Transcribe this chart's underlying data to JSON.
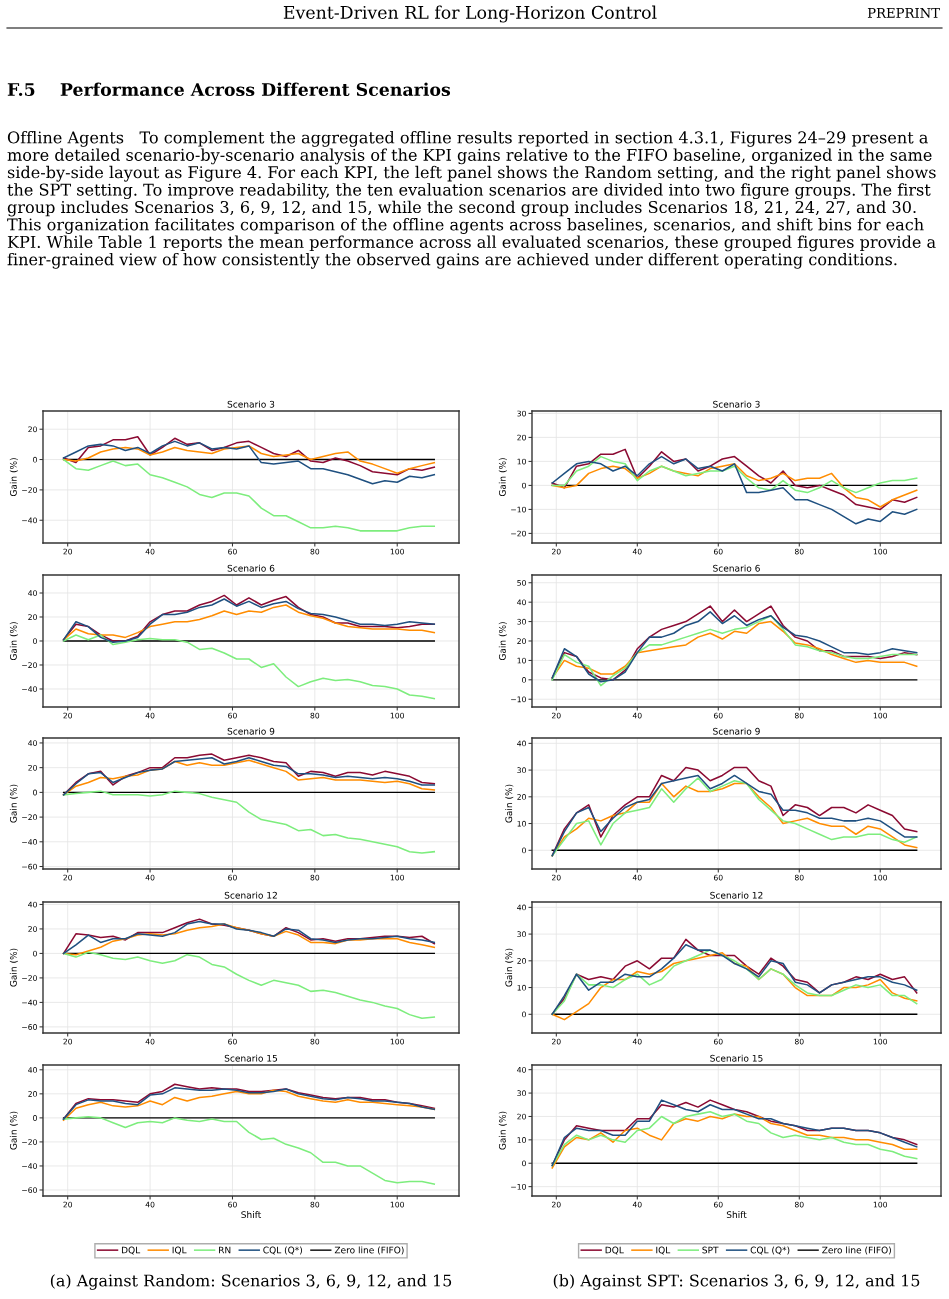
{
  "chart_data": [
    {
      "type": "other",
      "title": "F.5    Performance Across Different Scenarios",
      "annotations": [
        "Event-Driven RL for Long-Horizon Control",
        "PREPRINT",
        "Offline Agents   To complement the aggregated offline results reported in section 4.3.1, Figures 24–29 present a more detailed scenario-by-scenario analysis of the KPI gains relative to the FIFO baseline, organized in the same side-by-side layout as Figure 4. For each KPI, the left panel shows the Random setting, and the right panel shows the SPT setting. To improve readability, the ten evaluation scenarios are divided into two figure groups. The first group includes Scenarios 3, 6, 9, 12, and 15, while the second group includes Scenarios 18, 21, 24, 27, and 30. This organization facilitates comparison of the offline agents across baselines, scenarios, and shift bins for each KPI. While Table 1 reports the mean performance across all evaluated scenarios, these grouped figures provide a finer-grained view of how consistently the observed gains are achieved under different operating conditions."
      ]
    },
    {
      "type": "line",
      "title": "Scenario 3",
      "ylabel": "Gain (%)",
      "grid": true,
      "legend": false,
      "xlim": [
        14,
        115
      ],
      "xticks": [
        20,
        40,
        60,
        80,
        100
      ],
      "ylim": [
        -55,
        32
      ],
      "yticks": [
        -40,
        -20,
        0,
        20
      ],
      "x": [
        19,
        22,
        25,
        28,
        31,
        34,
        37,
        40,
        43,
        46,
        49,
        52,
        55,
        58,
        61,
        64,
        67,
        70,
        73,
        76,
        79,
        82,
        85,
        88,
        91,
        94,
        97,
        100,
        103,
        106,
        109
      ],
      "ref_lines": [
        {
          "axis": "y",
          "value": 0,
          "color": "#000000"
        }
      ],
      "series": [
        {
          "color": "#8b0a32",
          "values": [
            1,
            -2,
            8,
            9,
            13,
            13,
            15,
            3,
            8,
            14,
            10,
            11,
            6,
            8,
            11,
            12,
            8,
            4,
            2,
            6,
            -1,
            -2,
            1,
            -1,
            -4,
            -8,
            -9,
            -10,
            -6,
            -7,
            -5
          ]
        },
        {
          "color": "#ff8c00",
          "values": [
            0,
            -1,
            1,
            5,
            7,
            8,
            7,
            3,
            5,
            8,
            6,
            5,
            4,
            7,
            8,
            9,
            4,
            2,
            3,
            4,
            0,
            2,
            4,
            5,
            -1,
            -3,
            -6,
            -9,
            -6,
            -4,
            -2
          ]
        },
        {
          "color": "#7ded7d",
          "values": [
            0,
            -6,
            -7,
            -4,
            -1,
            -4,
            -3,
            -10,
            -12,
            -15,
            -18,
            -23,
            -25,
            -22,
            -22,
            -24,
            -32,
            -37,
            -37,
            -41,
            -45,
            -45,
            -44,
            -45,
            -47,
            -47,
            -47,
            -47,
            -45,
            -44,
            -44
          ]
        },
        {
          "color": "#1f5080",
          "values": [
            1,
            5,
            9,
            10,
            9,
            6,
            8,
            4,
            9,
            12,
            9,
            11,
            7,
            8,
            7,
            9,
            -2,
            -3,
            -2,
            -1,
            -6,
            -6,
            -8,
            -10,
            -13,
            -16,
            -14,
            -15,
            -11,
            -12,
            -10
          ]
        }
      ]
    },
    {
      "type": "line",
      "title": "Scenario 3",
      "ylabel": "Gain (%)",
      "grid": true,
      "legend": false,
      "xlim": [
        14,
        115
      ],
      "xticks": [
        20,
        40,
        60,
        80,
        100
      ],
      "ylim": [
        -24,
        31
      ],
      "yticks": [
        -20,
        -10,
        0,
        10,
        20,
        30
      ],
      "x": [
        19,
        22,
        25,
        28,
        31,
        34,
        37,
        40,
        43,
        46,
        49,
        52,
        55,
        58,
        61,
        64,
        67,
        70,
        73,
        76,
        79,
        82,
        85,
        88,
        91,
        94,
        97,
        100,
        103,
        106,
        109
      ],
      "ref_lines": [
        {
          "axis": "y",
          "value": 0,
          "color": "#000000"
        }
      ],
      "series": [
        {
          "color": "#8b0a32",
          "values": [
            1,
            -1,
            8,
            9,
            13,
            13,
            15,
            3,
            8,
            14,
            10,
            11,
            6,
            8,
            11,
            12,
            8,
            4,
            1,
            6,
            0,
            -1,
            0,
            -2,
            -4,
            -8,
            -9,
            -10,
            -6,
            -7,
            -5
          ]
        },
        {
          "color": "#ff8c00",
          "values": [
            0,
            -1,
            0,
            5,
            7,
            8,
            7,
            3,
            5,
            8,
            6,
            5,
            4,
            7,
            8,
            9,
            4,
            2,
            3,
            5,
            2,
            3,
            3,
            5,
            -1,
            -5,
            -6,
            -9,
            -6,
            -4,
            -2
          ]
        },
        {
          "color": "#7ded7d",
          "values": [
            0,
            0,
            6,
            8,
            12,
            10,
            9,
            2,
            6,
            8,
            6,
            4,
            5,
            6,
            6,
            8,
            3,
            -1,
            -2,
            2,
            -2,
            -3,
            -1,
            2,
            -1,
            -3,
            -1,
            1,
            2,
            2,
            3
          ]
        },
        {
          "color": "#1f5080",
          "values": [
            1,
            5,
            9,
            10,
            9,
            6,
            8,
            4,
            9,
            12,
            9,
            11,
            7,
            8,
            6,
            9,
            -3,
            -3,
            -2,
            -1,
            -6,
            -6,
            -8,
            -10,
            -13,
            -16,
            -14,
            -15,
            -11,
            -12,
            -10
          ]
        }
      ]
    },
    {
      "type": "line",
      "title": "Scenario 6",
      "ylabel": "Gain (%)",
      "grid": true,
      "legend": false,
      "xlim": [
        14,
        115
      ],
      "xticks": [
        20,
        40,
        60,
        80,
        100
      ],
      "ylim": [
        -55,
        55
      ],
      "yticks": [
        -40,
        -20,
        0,
        20,
        40
      ],
      "x": [
        19,
        22,
        25,
        28,
        31,
        34,
        37,
        40,
        43,
        46,
        49,
        52,
        55,
        58,
        61,
        64,
        67,
        70,
        73,
        76,
        79,
        82,
        85,
        88,
        91,
        94,
        97,
        100,
        103,
        106,
        109
      ],
      "ref_lines": [
        {
          "axis": "y",
          "value": 0,
          "color": "#000000"
        }
      ],
      "series": [
        {
          "color": "#8b0a32",
          "values": [
            1,
            14,
            12,
            5,
            0,
            0,
            4,
            16,
            22,
            25,
            25,
            30,
            33,
            38,
            30,
            36,
            30,
            34,
            37,
            28,
            22,
            20,
            15,
            15,
            12,
            12,
            12,
            11,
            12,
            14,
            14
          ]
        },
        {
          "color": "#ff8c00",
          "values": [
            1,
            10,
            6,
            5,
            5,
            3,
            7,
            12,
            14,
            16,
            16,
            18,
            21,
            25,
            22,
            25,
            24,
            28,
            30,
            24,
            21,
            19,
            15,
            12,
            11,
            10,
            10,
            10,
            9,
            9,
            7
          ]
        },
        {
          "color": "#7ded7d",
          "values": [
            0,
            5,
            1,
            5,
            -3,
            -1,
            1,
            2,
            1,
            1,
            -1,
            -7,
            -6,
            -10,
            -15,
            -15,
            -22,
            -19,
            -30,
            -38,
            -34,
            -31,
            -33,
            -32,
            -34,
            -37,
            -38,
            -40,
            -45,
            -46,
            -48
          ]
        },
        {
          "color": "#1f5080",
          "values": [
            1,
            16,
            12,
            3,
            -1,
            0,
            3,
            14,
            22,
            22,
            24,
            28,
            30,
            35,
            29,
            33,
            28,
            31,
            33,
            27,
            23,
            22,
            20,
            17,
            14,
            14,
            13,
            14,
            16,
            15,
            14
          ]
        }
      ]
    },
    {
      "type": "line",
      "title": "Scenario 6",
      "ylabel": "Gain (%)",
      "grid": true,
      "legend": false,
      "xlim": [
        14,
        115
      ],
      "xticks": [
        20,
        40,
        60,
        80,
        100
      ],
      "ylim": [
        -14,
        54
      ],
      "yticks": [
        -10,
        0,
        10,
        20,
        30,
        40,
        50
      ],
      "x": [
        19,
        22,
        25,
        28,
        31,
        34,
        37,
        40,
        43,
        46,
        49,
        52,
        55,
        58,
        61,
        64,
        67,
        70,
        73,
        76,
        79,
        82,
        85,
        88,
        91,
        94,
        97,
        100,
        103,
        106,
        109
      ],
      "ref_lines": [
        {
          "axis": "y",
          "value": 0,
          "color": "#000000"
        }
      ],
      "series": [
        {
          "color": "#8b0a32",
          "values": [
            1,
            14,
            12,
            4,
            1,
            0,
            5,
            16,
            22,
            26,
            28,
            30,
            34,
            38,
            30,
            36,
            30,
            34,
            38,
            28,
            22,
            20,
            15,
            15,
            12,
            12,
            12,
            11,
            12,
            14,
            13
          ]
        },
        {
          "color": "#ff8c00",
          "values": [
            1,
            10,
            7,
            6,
            3,
            3,
            7,
            14,
            15,
            16,
            17,
            18,
            22,
            24,
            21,
            25,
            24,
            29,
            30,
            25,
            19,
            18,
            16,
            13,
            11,
            9,
            10,
            9,
            9,
            9,
            7
          ]
        },
        {
          "color": "#7ded7d",
          "values": [
            0,
            13,
            9,
            7,
            -3,
            2,
            6,
            14,
            18,
            18,
            20,
            22,
            24,
            26,
            24,
            26,
            27,
            30,
            33,
            26,
            18,
            17,
            15,
            14,
            12,
            11,
            11,
            12,
            13,
            13,
            13
          ]
        },
        {
          "color": "#1f5080",
          "values": [
            1,
            16,
            12,
            3,
            -1,
            0,
            4,
            14,
            22,
            22,
            24,
            28,
            30,
            35,
            29,
            33,
            28,
            31,
            33,
            27,
            23,
            22,
            20,
            17,
            14,
            14,
            13,
            14,
            16,
            15,
            14
          ]
        }
      ]
    },
    {
      "type": "line",
      "title": "Scenario 9",
      "ylabel": "Gain (%)",
      "grid": true,
      "legend": false,
      "xlim": [
        14,
        115
      ],
      "xticks": [
        20,
        40,
        60,
        80,
        100
      ],
      "ylim": [
        -62,
        44
      ],
      "yticks": [
        -60,
        -40,
        -20,
        0,
        20,
        40
      ],
      "x": [
        19,
        22,
        25,
        28,
        31,
        34,
        37,
        40,
        43,
        46,
        49,
        52,
        55,
        58,
        61,
        64,
        67,
        70,
        73,
        76,
        79,
        82,
        85,
        88,
        91,
        94,
        97,
        100,
        103,
        106,
        109
      ],
      "ref_lines": [
        {
          "axis": "y",
          "value": 0,
          "color": "#000000"
        }
      ],
      "series": [
        {
          "color": "#8b0a32",
          "values": [
            -2,
            8,
            15,
            17,
            6,
            13,
            16,
            20,
            20,
            28,
            28,
            30,
            31,
            26,
            28,
            30,
            28,
            25,
            24,
            13,
            17,
            16,
            13,
            16,
            16,
            14,
            17,
            15,
            13,
            8,
            7
          ]
        },
        {
          "color": "#ff8c00",
          "values": [
            -2,
            5,
            8,
            12,
            11,
            13,
            14,
            18,
            19,
            25,
            22,
            24,
            22,
            22,
            24,
            26,
            23,
            20,
            17,
            10,
            11,
            12,
            10,
            10,
            10,
            9,
            8,
            9,
            7,
            3,
            2
          ]
        },
        {
          "color": "#7ded7d",
          "values": [
            -2,
            -1,
            0,
            1,
            -2,
            -2,
            -2,
            -3,
            -2,
            1,
            0,
            -1,
            -4,
            -6,
            -8,
            -16,
            -22,
            -24,
            -26,
            -31,
            -30,
            -35,
            -34,
            -37,
            -38,
            -40,
            -42,
            -44,
            -48,
            -49,
            -48
          ]
        },
        {
          "color": "#1f5080",
          "values": [
            -2,
            7,
            15,
            16,
            8,
            12,
            16,
            18,
            19,
            25,
            26,
            27,
            28,
            23,
            25,
            28,
            25,
            22,
            21,
            15,
            15,
            14,
            12,
            13,
            12,
            11,
            12,
            11,
            9,
            6,
            6
          ]
        }
      ]
    },
    {
      "type": "line",
      "title": "Scenario 9",
      "ylabel": "Gain (%)",
      "grid": true,
      "legend": false,
      "xlim": [
        14,
        115
      ],
      "xticks": [
        20,
        40,
        60,
        80,
        100
      ],
      "ylim": [
        -7,
        42
      ],
      "yticks": [
        0,
        10,
        20,
        30,
        40
      ],
      "x": [
        19,
        22,
        25,
        28,
        31,
        34,
        37,
        40,
        43,
        46,
        49,
        52,
        55,
        58,
        61,
        64,
        67,
        70,
        73,
        76,
        79,
        82,
        85,
        88,
        91,
        94,
        97,
        100,
        103,
        106,
        109
      ],
      "ref_lines": [
        {
          "axis": "y",
          "value": 0,
          "color": "#000000"
        }
      ],
      "series": [
        {
          "color": "#8b0a32",
          "values": [
            -2,
            8,
            14,
            17,
            5,
            13,
            17,
            20,
            20,
            28,
            26,
            31,
            30,
            26,
            28,
            31,
            31,
            26,
            24,
            13,
            17,
            16,
            13,
            16,
            16,
            14,
            17,
            15,
            13,
            8,
            7
          ]
        },
        {
          "color": "#ff8c00",
          "values": [
            -2,
            5,
            8,
            12,
            11,
            13,
            14,
            18,
            18,
            25,
            20,
            24,
            22,
            22,
            23,
            25,
            25,
            20,
            16,
            10,
            11,
            12,
            10,
            9,
            9,
            6,
            9,
            8,
            5,
            2,
            1
          ]
        },
        {
          "color": "#7ded7d",
          "values": [
            -2,
            4,
            10,
            11,
            2,
            10,
            14,
            15,
            16,
            23,
            18,
            23,
            27,
            22,
            24,
            26,
            25,
            19,
            15,
            11,
            10,
            8,
            6,
            4,
            5,
            5,
            6,
            6,
            4,
            3,
            5
          ]
        },
        {
          "color": "#1f5080",
          "values": [
            -2,
            7,
            14,
            16,
            7,
            12,
            16,
            18,
            19,
            25,
            26,
            27,
            28,
            23,
            25,
            28,
            25,
            22,
            21,
            15,
            15,
            14,
            12,
            12,
            11,
            11,
            12,
            11,
            8,
            5,
            5
          ]
        }
      ]
    },
    {
      "type": "line",
      "title": "Scenario 12",
      "ylabel": "Gain (%)",
      "grid": true,
      "legend": false,
      "xlim": [
        14,
        115
      ],
      "xticks": [
        20,
        40,
        60,
        80,
        100
      ],
      "ylim": [
        -65,
        42
      ],
      "yticks": [
        -60,
        -40,
        -20,
        0,
        20,
        40
      ],
      "x": [
        19,
        22,
        25,
        28,
        31,
        34,
        37,
        40,
        43,
        46,
        49,
        52,
        55,
        58,
        61,
        64,
        67,
        70,
        73,
        76,
        79,
        82,
        85,
        88,
        91,
        94,
        97,
        100,
        103,
        106,
        109
      ],
      "ref_lines": [
        {
          "axis": "y",
          "value": 0,
          "color": "#000000"
        }
      ],
      "series": [
        {
          "color": "#8b0a32",
          "values": [
            0,
            16,
            15,
            13,
            14,
            11,
            17,
            17,
            17,
            21,
            25,
            28,
            24,
            23,
            21,
            19,
            16,
            14,
            21,
            17,
            11,
            12,
            10,
            12,
            12,
            13,
            14,
            14,
            13,
            14,
            8
          ]
        },
        {
          "color": "#ff8c00",
          "values": [
            0,
            -1,
            2,
            5,
            10,
            12,
            15,
            16,
            15,
            16,
            19,
            21,
            22,
            24,
            21,
            19,
            16,
            14,
            18,
            15,
            9,
            9,
            8,
            11,
            11,
            12,
            12,
            12,
            9,
            7,
            5
          ]
        },
        {
          "color": "#7ded7d",
          "values": [
            0,
            -3,
            1,
            -1,
            -4,
            -5,
            -3,
            -6,
            -8,
            -6,
            -1,
            -3,
            -9,
            -11,
            -17,
            -22,
            -26,
            -22,
            -24,
            -26,
            -31,
            -30,
            -32,
            -35,
            -38,
            -40,
            -43,
            -45,
            -50,
            -53,
            -52
          ]
        },
        {
          "color": "#1f5080",
          "values": [
            0,
            7,
            15,
            9,
            12,
            12,
            16,
            15,
            14,
            17,
            24,
            26,
            24,
            24,
            20,
            19,
            17,
            14,
            20,
            19,
            12,
            11,
            9,
            11,
            12,
            12,
            13,
            14,
            12,
            11,
            9
          ]
        }
      ]
    },
    {
      "type": "line",
      "title": "Scenario 12",
      "ylabel": "Gain (%)",
      "grid": true,
      "legend": false,
      "xlim": [
        14,
        115
      ],
      "xticks": [
        20,
        40,
        60,
        80,
        100
      ],
      "ylim": [
        -7,
        42
      ],
      "yticks": [
        0,
        10,
        20,
        30,
        40
      ],
      "x": [
        19,
        22,
        25,
        28,
        31,
        34,
        37,
        40,
        43,
        46,
        49,
        52,
        55,
        58,
        61,
        64,
        67,
        70,
        73,
        76,
        79,
        82,
        85,
        88,
        91,
        94,
        97,
        100,
        103,
        106,
        109
      ],
      "ref_lines": [
        {
          "axis": "y",
          "value": 0,
          "color": "#000000"
        }
      ],
      "series": [
        {
          "color": "#8b0a32",
          "values": [
            0,
            6,
            15,
            13,
            14,
            13,
            18,
            20,
            17,
            21,
            21,
            28,
            24,
            22,
            22,
            22,
            18,
            15,
            21,
            18,
            13,
            12,
            8,
            11,
            12,
            14,
            13,
            15,
            13,
            14,
            8
          ]
        },
        {
          "color": "#ff8c00",
          "values": [
            0,
            -2,
            1,
            4,
            10,
            13,
            13,
            16,
            15,
            16,
            19,
            20,
            21,
            22,
            23,
            19,
            18,
            13,
            17,
            15,
            10,
            7,
            7,
            7,
            10,
            10,
            11,
            13,
            8,
            6,
            5
          ]
        },
        {
          "color": "#7ded7d",
          "values": [
            0,
            5,
            15,
            11,
            11,
            10,
            13,
            15,
            11,
            13,
            18,
            20,
            22,
            24,
            22,
            20,
            17,
            13,
            17,
            15,
            11,
            8,
            7,
            7,
            9,
            11,
            10,
            11,
            7,
            7,
            4
          ]
        },
        {
          "color": "#1f5080",
          "values": [
            0,
            7,
            15,
            9,
            12,
            12,
            15,
            14,
            14,
            17,
            21,
            26,
            24,
            24,
            22,
            19,
            17,
            14,
            20,
            19,
            12,
            11,
            8,
            11,
            12,
            13,
            14,
            14,
            12,
            11,
            9
          ]
        }
      ]
    },
    {
      "type": "line",
      "title": "Scenario 15",
      "xlabel": "Shift",
      "ylabel": "Gain (%)",
      "grid": true,
      "legend": "bottom",
      "xlim": [
        14,
        115
      ],
      "xticks": [
        20,
        40,
        60,
        80,
        100
      ],
      "ylim": [
        -65,
        44
      ],
      "yticks": [
        -60,
        -40,
        -20,
        0,
        20,
        40
      ],
      "annotations": [
        "(a) Against Random: Scenarios 3, 6, 9, 12, and 15"
      ],
      "x": [
        19,
        22,
        25,
        28,
        31,
        34,
        37,
        40,
        43,
        46,
        49,
        52,
        55,
        58,
        61,
        64,
        67,
        70,
        73,
        76,
        79,
        82,
        85,
        88,
        91,
        94,
        97,
        100,
        103,
        106,
        109
      ],
      "ref_lines": [
        {
          "axis": "y",
          "value": 0,
          "color": "#000000",
          "label": "Zero line (FIFO)"
        }
      ],
      "series": [
        {
          "name": "DQL",
          "color": "#8b0a32",
          "values": [
            -1,
            12,
            16,
            15,
            15,
            14,
            13,
            20,
            22,
            28,
            26,
            24,
            25,
            24,
            24,
            22,
            22,
            23,
            24,
            21,
            19,
            17,
            16,
            17,
            17,
            15,
            15,
            13,
            12,
            10,
            8
          ]
        },
        {
          "name": "IQL",
          "color": "#ff8c00",
          "values": [
            -2,
            8,
            11,
            13,
            10,
            9,
            10,
            14,
            11,
            17,
            14,
            17,
            18,
            20,
            22,
            20,
            20,
            23,
            22,
            18,
            16,
            14,
            13,
            15,
            13,
            13,
            12,
            11,
            10,
            9,
            7
          ]
        },
        {
          "name": "RN",
          "color": "#7ded7d",
          "values": [
            -1,
            0,
            1,
            0,
            -4,
            -8,
            -4,
            -3,
            -4,
            0,
            -2,
            -3,
            -1,
            -3,
            -3,
            -12,
            -18,
            -17,
            -22,
            -25,
            -29,
            -37,
            -37,
            -40,
            -40,
            -46,
            -52,
            -54,
            -53,
            -53,
            -55
          ]
        },
        {
          "name": "CQL (Q*)",
          "color": "#1f5080",
          "values": [
            -1,
            11,
            15,
            14,
            14,
            12,
            11,
            19,
            20,
            25,
            24,
            23,
            23,
            24,
            23,
            21,
            21,
            22,
            24,
            20,
            18,
            16,
            15,
            17,
            16,
            14,
            14,
            13,
            12,
            9,
            7
          ]
        }
      ]
    },
    {
      "type": "line",
      "title": "Scenario 15",
      "xlabel": "Shift",
      "ylabel": "Gain (%)",
      "grid": true,
      "legend": "bottom",
      "xlim": [
        14,
        115
      ],
      "xticks": [
        20,
        40,
        60,
        80,
        100
      ],
      "ylim": [
        -14,
        42
      ],
      "yticks": [
        -10,
        0,
        10,
        20,
        30,
        40
      ],
      "annotations": [
        "(b) Against SPT: Scenarios 3, 6, 9, 12, and 15"
      ],
      "x": [
        19,
        22,
        25,
        28,
        31,
        34,
        37,
        40,
        43,
        46,
        49,
        52,
        55,
        58,
        61,
        64,
        67,
        70,
        73,
        76,
        79,
        82,
        85,
        88,
        91,
        94,
        97,
        100,
        103,
        106,
        109
      ],
      "ref_lines": [
        {
          "axis": "y",
          "value": 0,
          "color": "#000000",
          "label": "Zero line (FIFO)"
        }
      ],
      "series": [
        {
          "name": "DQL",
          "color": "#8b0a32",
          "values": [
            -1,
            10,
            16,
            15,
            14,
            14,
            14,
            19,
            19,
            25,
            24,
            26,
            24,
            27,
            25,
            23,
            22,
            20,
            18,
            17,
            16,
            14,
            14,
            15,
            15,
            14,
            14,
            13,
            11,
            10,
            8
          ]
        },
        {
          "name": "IQL",
          "color": "#ff8c00",
          "values": [
            -2,
            7,
            11,
            10,
            13,
            9,
            14,
            15,
            12,
            10,
            17,
            19,
            18,
            20,
            19,
            21,
            20,
            20,
            17,
            16,
            14,
            12,
            12,
            11,
            11,
            10,
            10,
            9,
            8,
            6,
            6
          ]
        },
        {
          "name": "SPT",
          "color": "#7ded7d",
          "values": [
            -1,
            8,
            12,
            10,
            12,
            10,
            9,
            14,
            15,
            20,
            17,
            20,
            21,
            22,
            20,
            21,
            18,
            17,
            13,
            11,
            12,
            11,
            10,
            11,
            9,
            8,
            8,
            6,
            5,
            3,
            2
          ]
        },
        {
          "name": "CQL (Q*)",
          "color": "#1f5080",
          "values": [
            -1,
            11,
            15,
            14,
            14,
            12,
            12,
            18,
            18,
            27,
            25,
            23,
            22,
            25,
            23,
            23,
            21,
            19,
            19,
            17,
            16,
            15,
            14,
            15,
            15,
            14,
            14,
            13,
            11,
            9,
            7
          ]
        }
      ]
    }
  ]
}
